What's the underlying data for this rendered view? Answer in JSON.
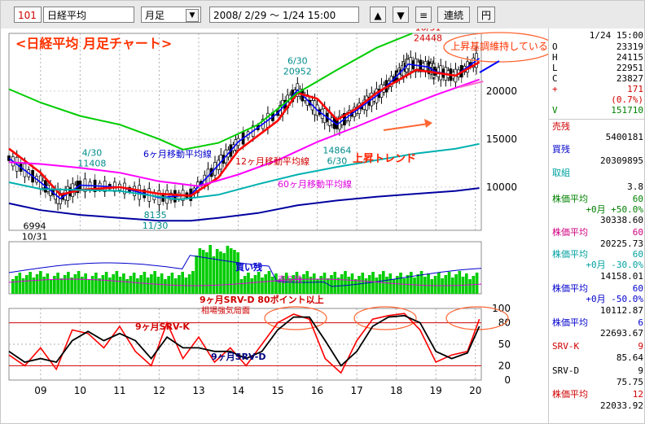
{
  "toolbar": {
    "code": "101",
    "name": "日経平均",
    "period": "月足",
    "range": "2008/ 2/29 ～ 1/24 15:00",
    "up_icon": "▲",
    "down_icon": "▼",
    "menu_icon": "≡",
    "continuous_label": "連続",
    "yen_label": "円"
  },
  "chart_data": {
    "type": "line",
    "title": "<日経平均 月足チャート>",
    "x_tick_labels": [
      "09",
      "10",
      "11",
      "12",
      "13",
      "14",
      "15",
      "16",
      "17",
      "18",
      "19",
      "20"
    ],
    "price_axis_ticks": [
      10000,
      15000,
      20000
    ],
    "price_ylim": [
      5500,
      26000
    ],
    "stoch_axis_ticks": [
      0,
      20,
      50,
      80,
      100
    ],
    "price_series": [
      {
        "name": "6ヶ月移動平均線",
        "color": "#0000ff",
        "x": [
          2008.2,
          2009.0,
          2009.5,
          2010.0,
          2011.0,
          2012.0,
          2012.8,
          2013.5,
          2014.0,
          2015.0,
          2015.5,
          2016.0,
          2016.5,
          2017.0,
          2017.5,
          2018.0,
          2018.3,
          2018.8,
          2019.0,
          2019.5,
          2020.1
        ],
        "y": [
          13000,
          10500,
          8800,
          10200,
          10000,
          8900,
          9200,
          12300,
          14700,
          17700,
          20100,
          18000,
          16500,
          18000,
          19500,
          21500,
          22800,
          22500,
          22000,
          21600,
          23400
        ]
      },
      {
        "name": "12ヶ月移動平均線",
        "color": "#ff0000",
        "x": [
          2008.2,
          2009.0,
          2009.5,
          2010.0,
          2011.0,
          2012.0,
          2012.8,
          2013.5,
          2014.0,
          2015.0,
          2015.5,
          2016.0,
          2016.5,
          2017.0,
          2017.5,
          2018.0,
          2018.5,
          2019.0,
          2019.5,
          2020.1
        ],
        "y": [
          14000,
          11500,
          9200,
          9700,
          10000,
          9300,
          9100,
          11000,
          13800,
          16900,
          19800,
          19200,
          17000,
          18200,
          19800,
          21000,
          22200,
          21900,
          21600,
          23000
        ]
      },
      {
        "name": "60ヶ月移動平均線",
        "color": "#ff00ff",
        "x": [
          2008.2,
          2009.0,
          2010.0,
          2011.0,
          2012.0,
          2013.0,
          2014.0,
          2015.0,
          2016.0,
          2017.0,
          2018.0,
          2019.0,
          2020.1
        ],
        "y": [
          12600,
          12400,
          12000,
          11500,
          10600,
          10100,
          11300,
          12800,
          14700,
          16300,
          18000,
          19600,
          21200
        ]
      },
      {
        "name": "",
        "color": "#00b0b0",
        "x": [
          2008.2,
          2009.0,
          2010.0,
          2011.0,
          2012.0,
          2012.5,
          2013.5,
          2014.5,
          2015.5,
          2016.5,
          2017.5,
          2018.5,
          2019.5,
          2020.1
        ],
        "y": [
          10500,
          9800,
          9700,
          9600,
          9000,
          8700,
          9200,
          10300,
          11300,
          12100,
          12800,
          13500,
          14000,
          14500
        ]
      },
      {
        "name": "",
        "color": "#0000a0",
        "x": [
          2008.2,
          2009.0,
          2010.0,
          2011.0,
          2012.0,
          2012.8,
          2013.5,
          2014.5,
          2015.5,
          2016.5,
          2017.5,
          2018.5,
          2019.5,
          2020.1
        ],
        "y": [
          8300,
          7600,
          7100,
          6800,
          6500,
          6500,
          6800,
          7300,
          8100,
          8600,
          9000,
          9300,
          9600,
          9900
        ]
      },
      {
        "name": "",
        "color": "#00cc00",
        "x": [
          2008.2,
          2009.0,
          2010.0,
          2011.0,
          2012.0,
          2012.6,
          2013.5,
          2014.5,
          2015.5,
          2016.5,
          2017.5,
          2018.4
        ],
        "y": [
          20200,
          18800,
          17400,
          16500,
          15000,
          13900,
          14600,
          16500,
          19800,
          22200,
          24500,
          26000
        ]
      },
      {
        "name": "",
        "color": "#ff66cc",
        "x": [
          2019.6,
          2020.2
        ],
        "y": [
          20400,
          21000
        ]
      }
    ],
    "price_annotations": [
      {
        "text": "6994",
        "sub": "10/31",
        "x": 2008.85,
        "y": 6994
      },
      {
        "text": "4/30",
        "sub": "11408",
        "x": 2010.3,
        "y": 11408
      },
      {
        "text": "8135",
        "sub": "11/30",
        "x": 2011.9,
        "y": 8135
      },
      {
        "text": "6/30",
        "sub": "20952",
        "x": 2015.5,
        "y": 20952
      },
      {
        "text": "14864",
        "sub": "6/30",
        "x": 2016.5,
        "y": 14864
      },
      {
        "text": "10/31",
        "sub": "24448",
        "x": 2018.8,
        "y": 24448
      }
    ],
    "volume_labels": [
      "買い残",
      "売り残"
    ],
    "stoch_series": [
      {
        "name": "9ヶ月SRV-K",
        "color": "#ff0000",
        "x": [
          2008.2,
          2008.6,
          2009.0,
          2009.4,
          2009.8,
          2010.2,
          2010.6,
          2011.0,
          2011.4,
          2011.8,
          2012.2,
          2012.6,
          2013.0,
          2013.4,
          2013.8,
          2014.2,
          2014.6,
          2015.0,
          2015.4,
          2015.8,
          2016.2,
          2016.6,
          2017.0,
          2017.4,
          2017.8,
          2018.2,
          2018.6,
          2019.0,
          2019.4,
          2019.8,
          2020.1
        ],
        "y": [
          35,
          20,
          45,
          15,
          70,
          65,
          45,
          75,
          40,
          20,
          80,
          30,
          60,
          25,
          45,
          20,
          50,
          80,
          92,
          85,
          30,
          10,
          55,
          85,
          90,
          93,
          70,
          25,
          35,
          40,
          85
        ]
      },
      {
        "name": "9ヶ月SRV-D",
        "color": "#000000",
        "x": [
          2008.2,
          2008.6,
          2009.0,
          2009.4,
          2009.8,
          2010.2,
          2010.6,
          2011.0,
          2011.4,
          2011.8,
          2012.2,
          2012.6,
          2013.0,
          2013.4,
          2013.8,
          2014.2,
          2014.6,
          2015.0,
          2015.4,
          2015.8,
          2016.2,
          2016.6,
          2017.0,
          2017.4,
          2017.8,
          2018.2,
          2018.6,
          2019.0,
          2019.4,
          2019.8,
          2020.1
        ],
        "y": [
          40,
          25,
          30,
          25,
          55,
          68,
          55,
          65,
          55,
          30,
          60,
          45,
          45,
          40,
          40,
          30,
          40,
          70,
          88,
          88,
          55,
          20,
          40,
          75,
          88,
          90,
          80,
          40,
          30,
          38,
          75
        ]
      }
    ],
    "stoch_annotations": [
      "9ヶ月SRV-D 80ポイント以上",
      "相場強気局面"
    ],
    "labels": {
      "ma6": "6ヶ月移動平均線",
      "ma12": "12ヶ月移動平均線",
      "ma60": "60ヶ月移動平均線",
      "uptrend": "上昇トレンド",
      "uptrend_keep": "上昇基調維持している",
      "srvk": "9ヶ月SRV-K",
      "srvd": "9ヶ月SRV-D"
    }
  },
  "side": {
    "date": "1/24 15:00",
    "o_label": "O",
    "o_value": "23319",
    "h_label": "H",
    "h_value": "24115",
    "l_label": "L",
    "l_value": "22951",
    "c_label": "C",
    "c_value": "23827",
    "chg_label": "+",
    "chg_value": "171",
    "pct_value": "(0.7%)",
    "v_label": "V",
    "v_value": "151710",
    "sell_label": "売残",
    "sell_value": "5400181",
    "buy_label": "買残",
    "buy_value": "20309895",
    "kumi_label": "取組",
    "kumi_value": "3.8",
    "p1_label": "株価平均",
    "p1_n": "60",
    "p1_sub": "+0月 +50.0%",
    "p1_value": "30338.60",
    "p2_label": "株価平均",
    "p2_n": "60",
    "p2_value": "20225.73",
    "p3_label": "株価平均",
    "p3_n": "60",
    "p3_sub": "+0月 -30.0%",
    "p3_value": "14158.01",
    "p4_label": "株価平均",
    "p4_n": "60",
    "p4_sub": "+0月 -50.0%",
    "p4_value": "10112.87",
    "p5_label": "株価平均",
    "p5_n": "6",
    "p5_value": "22693.67",
    "k_label": "SRV-K",
    "k_n": "9",
    "k_value": "85.64",
    "d_label": "SRV-D",
    "d_n": "9",
    "d_value": "75.75",
    "p6_label": "株価平均",
    "p6_n": "12",
    "p6_value": "22033.92"
  }
}
